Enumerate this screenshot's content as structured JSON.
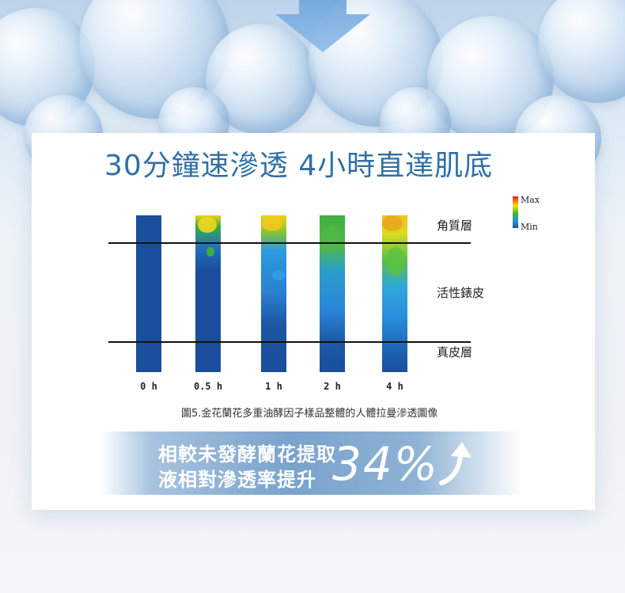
{
  "title": "30分鐘速滲透 4小時直達肌底",
  "legend": {
    "max_label": "Max",
    "min_label": "Min"
  },
  "layers": {
    "stratum_corneum": "角質層",
    "epidermis": "活性錶皮",
    "dermis": "真皮層"
  },
  "time_labels": [
    "0 h",
    "0.5 h",
    "1 h",
    "2 h",
    "4 h"
  ],
  "caption": "圖5.金花蘭花多重油酵因子樣品整體的人體拉曼滲透圖像",
  "banner": {
    "line1": "相較未發酵蘭花提取",
    "line2": "液相對滲透率提升",
    "percent": "34%"
  },
  "colors": {
    "title": "#2f6fa5",
    "bar_base": "#1a4e9c",
    "banner": "#7aa2cb"
  },
  "icons": [
    "down-arrow-icon",
    "up-arrow-icon"
  ]
}
